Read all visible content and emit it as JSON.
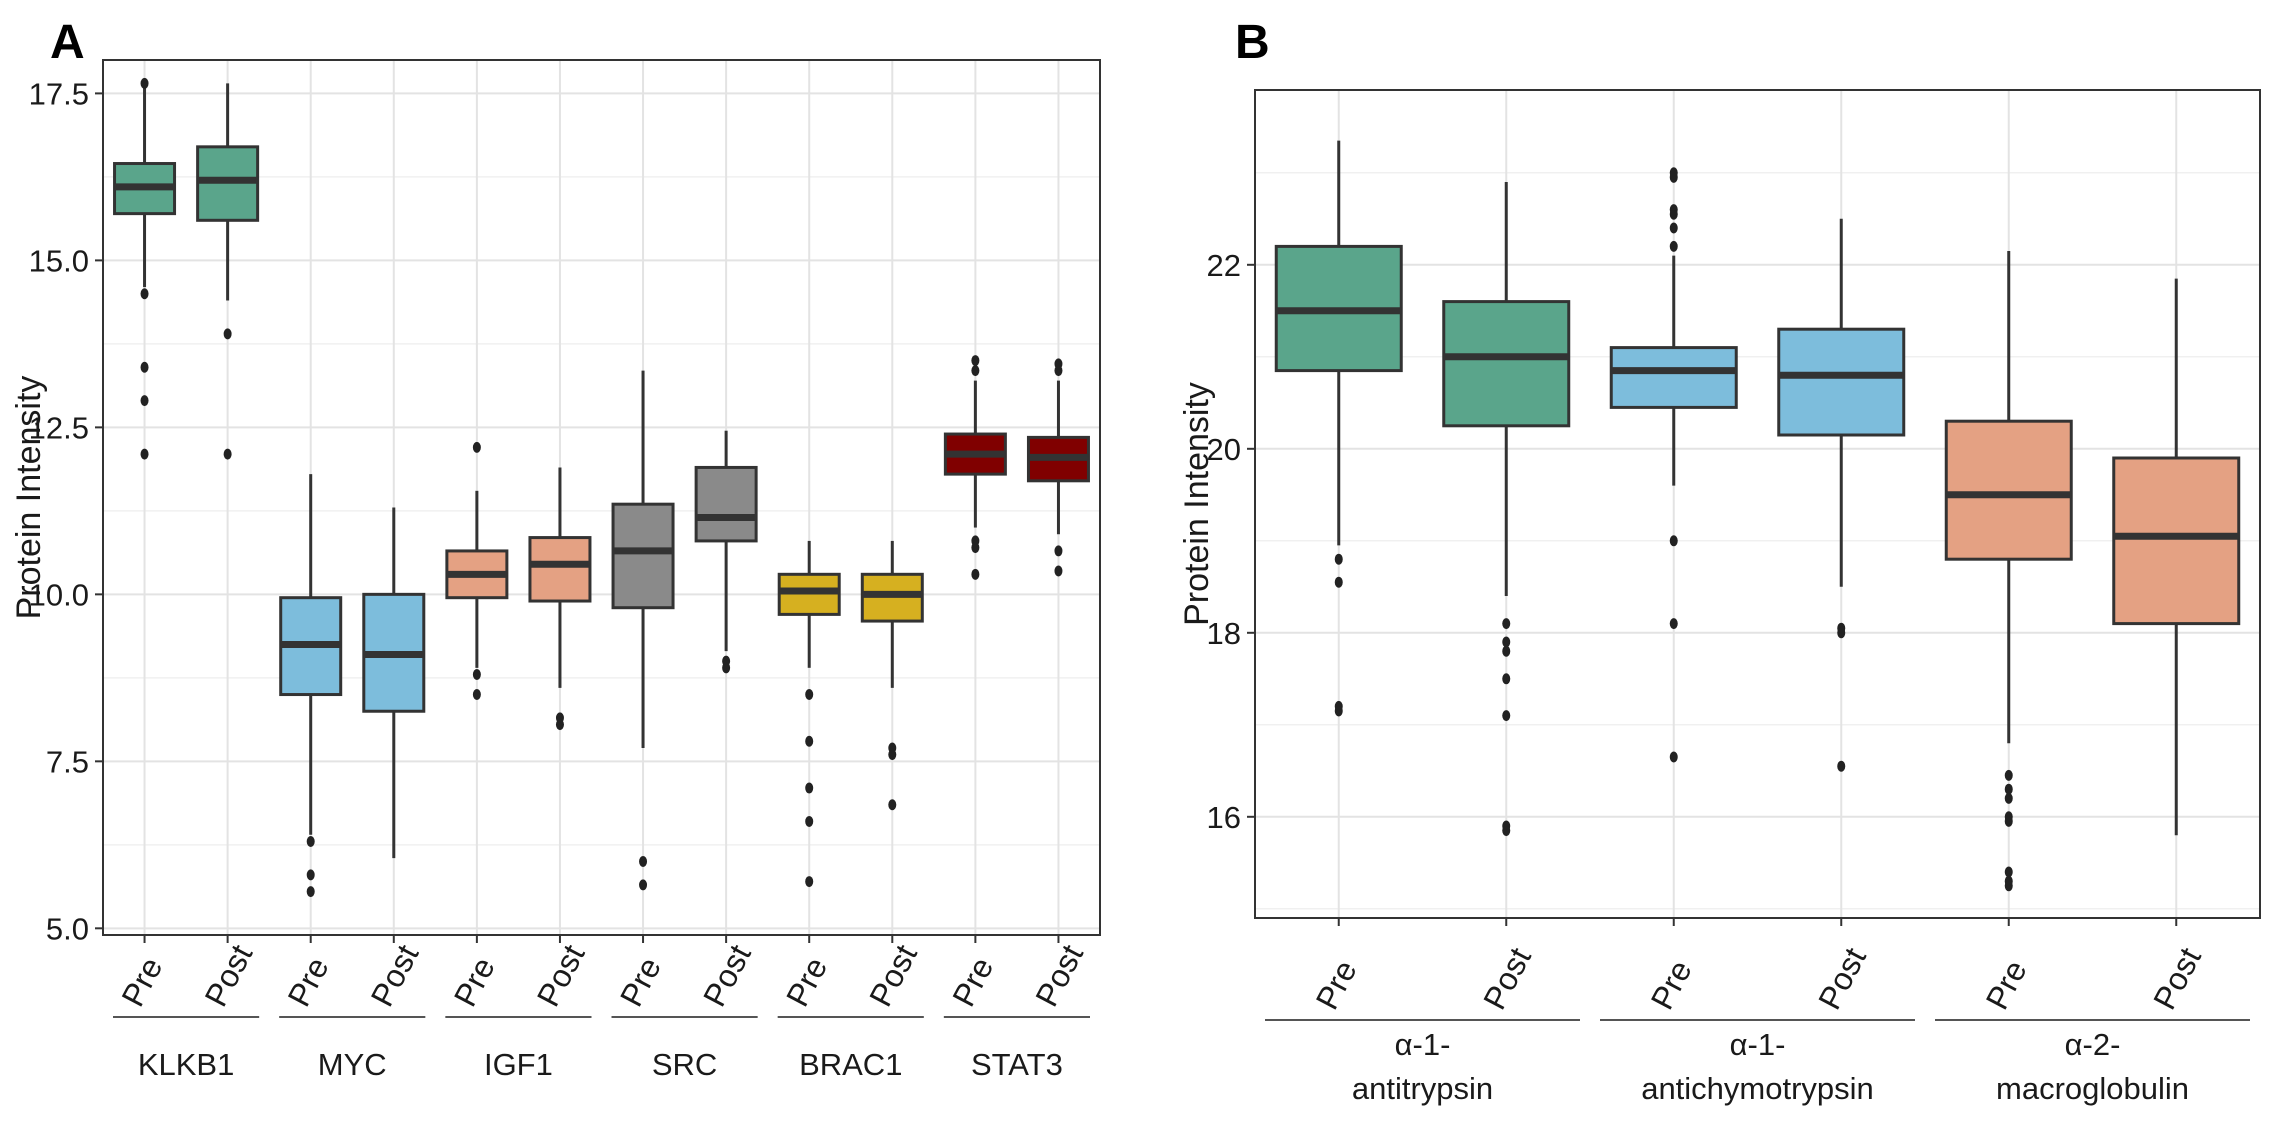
{
  "chart_data": [
    {
      "panel": "A",
      "type": "box",
      "ylabel": "Protein Intensity",
      "ylim": [
        4.9,
        18.0
      ],
      "yticks": [
        5.0,
        7.5,
        10.0,
        12.5,
        15.0,
        17.5
      ],
      "ytick_labels": [
        "5.0",
        "7.5",
        "10.0",
        "12.5",
        "15.0",
        "17.5"
      ],
      "grid": true,
      "groups": [
        {
          "label": "KLKB1",
          "color": "#5aa58b",
          "boxes": [
            {
              "label": "Pre",
              "q1": 15.7,
              "median": 16.1,
              "q3": 16.45,
              "whisker_low": 14.6,
              "whisker_high": 17.6,
              "outliers": [
                14.5,
                13.4,
                12.9,
                12.1,
                17.65
              ]
            },
            {
              "label": "Post",
              "q1": 15.6,
              "median": 16.2,
              "q3": 16.7,
              "whisker_low": 14.4,
              "whisker_high": 17.65,
              "outliers": [
                13.9,
                12.1
              ]
            }
          ]
        },
        {
          "label": "MYC",
          "color": "#7dbddc",
          "boxes": [
            {
              "label": "Pre",
              "q1": 8.5,
              "median": 9.25,
              "q3": 9.95,
              "whisker_low": 6.4,
              "whisker_high": 11.8,
              "outliers": [
                6.3,
                5.8,
                5.55
              ]
            },
            {
              "label": "Post",
              "q1": 8.25,
              "median": 9.1,
              "q3": 10.0,
              "whisker_low": 6.05,
              "whisker_high": 11.3,
              "outliers": []
            }
          ]
        },
        {
          "label": "IGF1",
          "color": "#e4a183",
          "boxes": [
            {
              "label": "Pre",
              "q1": 9.95,
              "median": 10.3,
              "q3": 10.65,
              "whisker_low": 8.9,
              "whisker_high": 11.55,
              "outliers": [
                8.8,
                8.5,
                12.2
              ]
            },
            {
              "label": "Post",
              "q1": 9.9,
              "median": 10.45,
              "q3": 10.85,
              "whisker_low": 8.6,
              "whisker_high": 11.9,
              "outliers": [
                8.15,
                8.05
              ]
            }
          ]
        },
        {
          "label": "SRC",
          "color": "#8a8a8a",
          "boxes": [
            {
              "label": "Pre",
              "q1": 9.8,
              "median": 10.65,
              "q3": 11.35,
              "whisker_low": 7.7,
              "whisker_high": 13.35,
              "outliers": [
                6.0,
                5.65
              ]
            },
            {
              "label": "Post",
              "q1": 10.8,
              "median": 11.15,
              "q3": 11.9,
              "whisker_low": 9.15,
              "whisker_high": 12.45,
              "outliers": [
                9.0,
                8.9
              ]
            }
          ]
        },
        {
          "label": "BRAC1",
          "color": "#d6b020",
          "boxes": [
            {
              "label": "Pre",
              "q1": 9.7,
              "median": 10.05,
              "q3": 10.3,
              "whisker_low": 8.9,
              "whisker_high": 10.8,
              "outliers": [
                8.5,
                7.8,
                7.1,
                6.6,
                5.7
              ]
            },
            {
              "label": "Post",
              "q1": 9.6,
              "median": 10.0,
              "q3": 10.3,
              "whisker_low": 8.6,
              "whisker_high": 10.8,
              "outliers": [
                7.7,
                7.6,
                6.85
              ]
            }
          ]
        },
        {
          "label": "STAT3",
          "color": "#800000",
          "boxes": [
            {
              "label": "Pre",
              "q1": 11.8,
              "median": 12.1,
              "q3": 12.4,
              "whisker_low": 11.0,
              "whisker_high": 13.2,
              "outliers": [
                10.8,
                10.7,
                10.3,
                13.35,
                13.5
              ]
            },
            {
              "label": "Post",
              "q1": 11.7,
              "median": 12.05,
              "q3": 12.35,
              "whisker_low": 10.9,
              "whisker_high": 13.2,
              "outliers": [
                10.65,
                10.35,
                13.35,
                13.45
              ]
            }
          ]
        }
      ]
    },
    {
      "panel": "B",
      "type": "box",
      "ylabel": "Protein Intensity",
      "ylim": [
        14.9,
        23.9
      ],
      "yticks": [
        16,
        18,
        20,
        22
      ],
      "ytick_labels": [
        "16",
        "18",
        "20",
        "22"
      ],
      "grid": true,
      "groups": [
        {
          "label_lines": [
            "α-1-",
            "antitrypsin"
          ],
          "color": "#5aa58b",
          "boxes": [
            {
              "label": "Pre",
              "q1": 20.85,
              "median": 21.5,
              "q3": 22.2,
              "whisker_low": 18.95,
              "whisker_high": 23.35,
              "outliers": [
                18.8,
                18.55,
                17.2,
                17.15
              ]
            },
            {
              "label": "Post",
              "q1": 20.25,
              "median": 21.0,
              "q3": 21.6,
              "whisker_low": 18.4,
              "whisker_high": 22.9,
              "outliers": [
                18.1,
                17.9,
                17.8,
                17.5,
                17.1,
                15.9,
                15.85
              ]
            }
          ]
        },
        {
          "label_lines": [
            "α-1-",
            "antichymotrypsin"
          ],
          "color": "#7dbddc",
          "boxes": [
            {
              "label": "Pre",
              "q1": 20.45,
              "median": 20.85,
              "q3": 21.1,
              "whisker_low": 19.6,
              "whisker_high": 22.1,
              "outliers": [
                22.2,
                22.4,
                22.55,
                22.6,
                22.95,
                23.0,
                19.0,
                18.1,
                16.65
              ]
            },
            {
              "label": "Post",
              "q1": 20.15,
              "median": 20.8,
              "q3": 21.3,
              "whisker_low": 18.5,
              "whisker_high": 22.5,
              "outliers": [
                18.05,
                18.0,
                16.55
              ]
            }
          ]
        },
        {
          "label_lines": [
            "α-2-",
            "macroglobulin"
          ],
          "color": "#e4a183",
          "boxes": [
            {
              "label": "Pre",
              "q1": 18.8,
              "median": 19.5,
              "q3": 20.3,
              "whisker_low": 16.8,
              "whisker_high": 22.15,
              "outliers": [
                16.45,
                16.3,
                16.2,
                16.0,
                15.95,
                15.4,
                15.3,
                15.25
              ]
            },
            {
              "label": "Post",
              "q1": 18.1,
              "median": 19.05,
              "q3": 19.9,
              "whisker_low": 15.8,
              "whisker_high": 21.85,
              "outliers": []
            }
          ]
        }
      ]
    }
  ]
}
